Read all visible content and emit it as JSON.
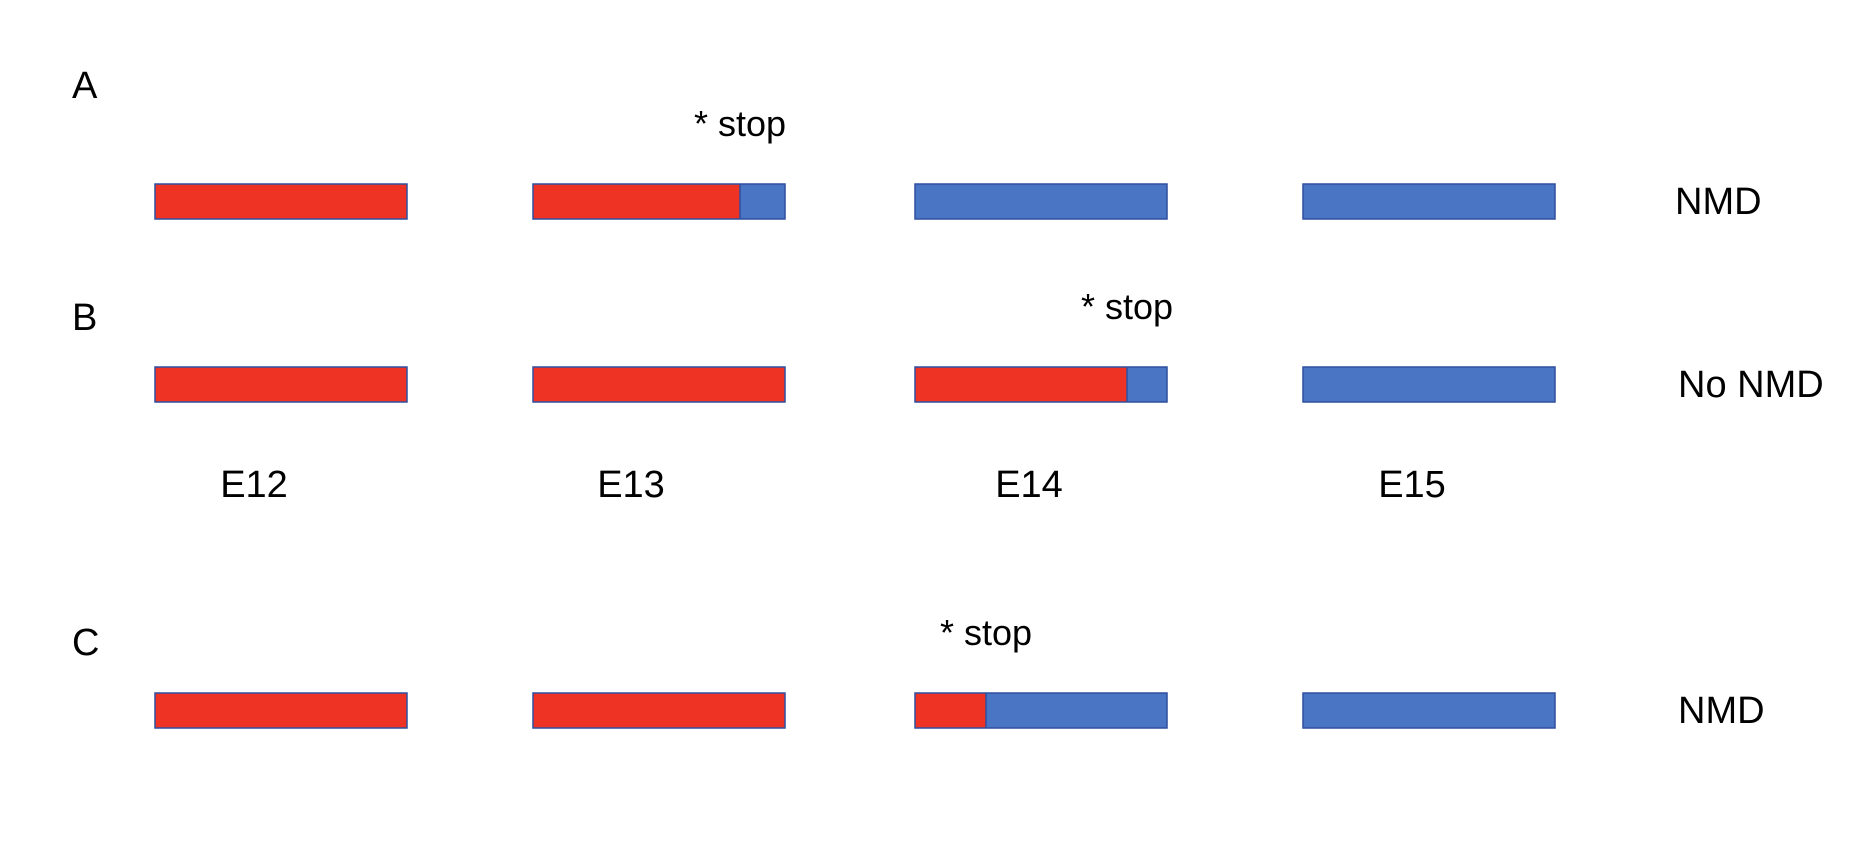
{
  "colors": {
    "coding": "#EE3224",
    "noncoding": "#4A74C4",
    "border": "#2F4F9E"
  },
  "exon_labels": [
    "E12",
    "E13",
    "E14",
    "E15"
  ],
  "stop_marker": "* stop",
  "panels": [
    {
      "label": "A",
      "outcome": "NMD",
      "stop_exon": 1,
      "coding_fraction": 0.82
    },
    {
      "label": "B",
      "outcome": "No NMD",
      "stop_exon": 2,
      "coding_fraction": 0.84
    },
    {
      "label": "C",
      "outcome": "NMD",
      "stop_exon": 2,
      "coding_fraction": 0.28
    }
  ]
}
